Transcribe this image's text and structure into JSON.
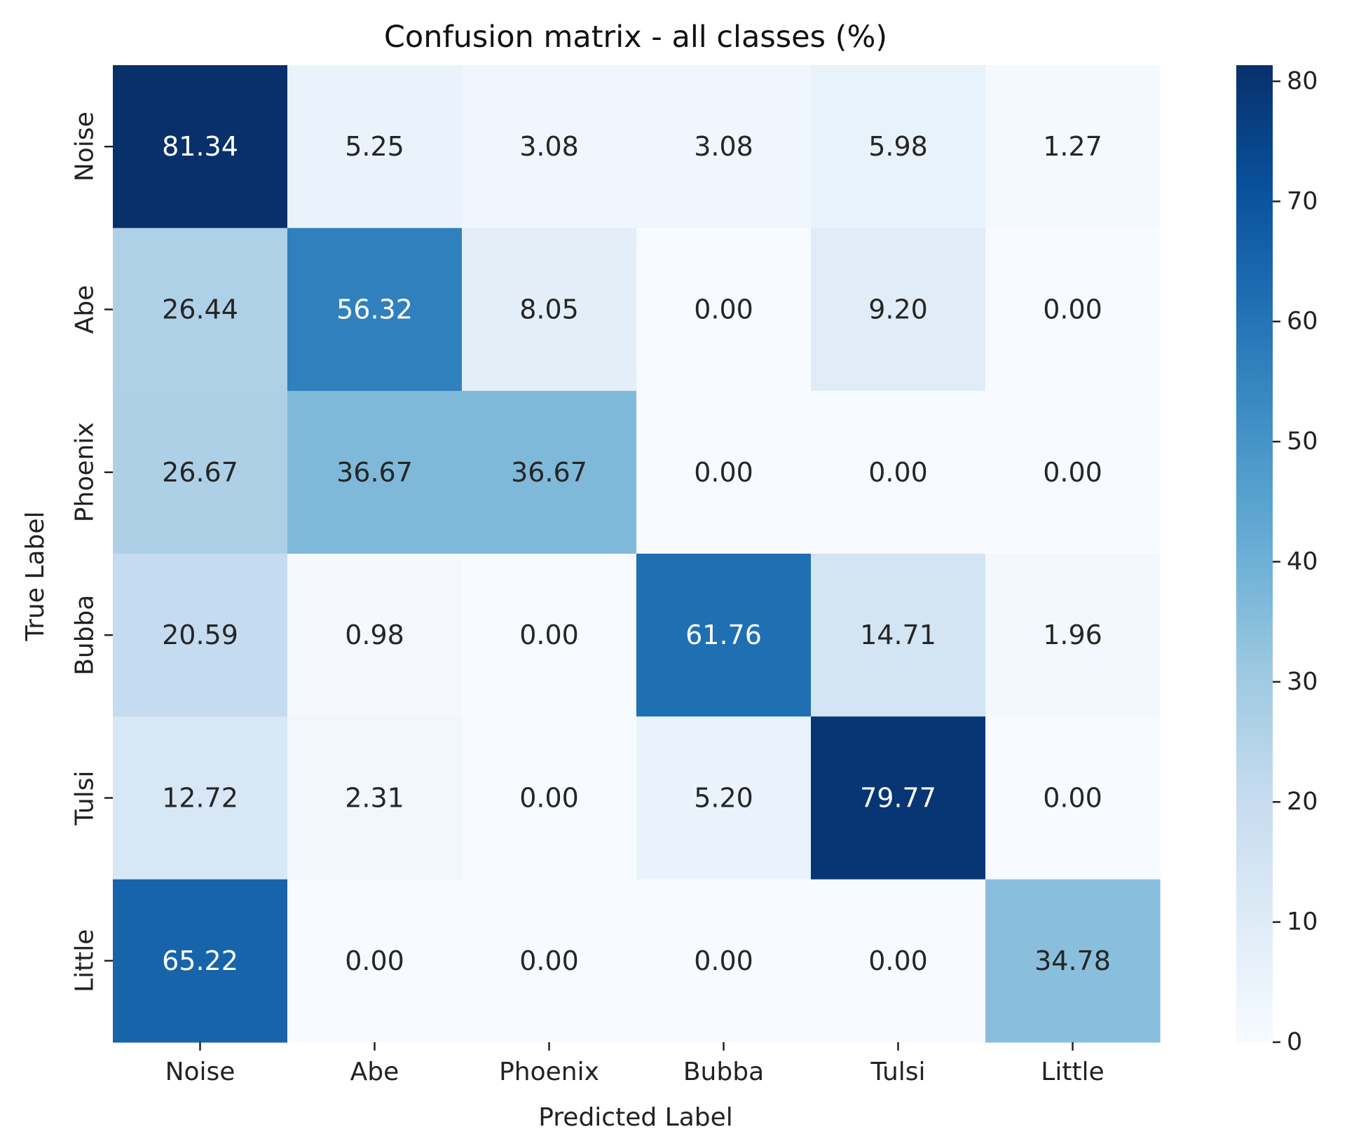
{
  "chart_data": {
    "type": "heatmap",
    "title": "Confusion matrix - all classes (%)",
    "xlabel": "Predicted Label",
    "ylabel": "True Label",
    "x_categories": [
      "Noise",
      "Abe",
      "Phoenix",
      "Bubba",
      "Tulsi",
      "Little"
    ],
    "y_categories": [
      "Noise",
      "Abe",
      "Phoenix",
      "Bubba",
      "Tulsi",
      "Little"
    ],
    "values": [
      [
        81.34,
        5.25,
        3.08,
        3.08,
        5.98,
        1.27
      ],
      [
        26.44,
        56.32,
        8.05,
        0.0,
        9.2,
        0.0
      ],
      [
        26.67,
        36.67,
        36.67,
        0.0,
        0.0,
        0.0
      ],
      [
        20.59,
        0.98,
        0.0,
        61.76,
        14.71,
        1.96
      ],
      [
        12.72,
        2.31,
        0.0,
        5.2,
        79.77,
        0.0
      ],
      [
        65.22,
        0.0,
        0.0,
        0.0,
        0.0,
        34.78
      ]
    ],
    "value_format": "2 decimals",
    "colormap": "Blues",
    "colorbar": {
      "range": [
        0,
        81.34
      ],
      "ticks": [
        0,
        10,
        20,
        30,
        40,
        50,
        60,
        70,
        80
      ]
    },
    "colors": {
      "colormap_stops": [
        "#f7fbff",
        "#deebf7",
        "#c6dbef",
        "#9ecae1",
        "#6baed6",
        "#4292c6",
        "#2171b5",
        "#08519c",
        "#08306b"
      ],
      "text_dark": "#262626",
      "text_light": "#ffffff"
    }
  }
}
